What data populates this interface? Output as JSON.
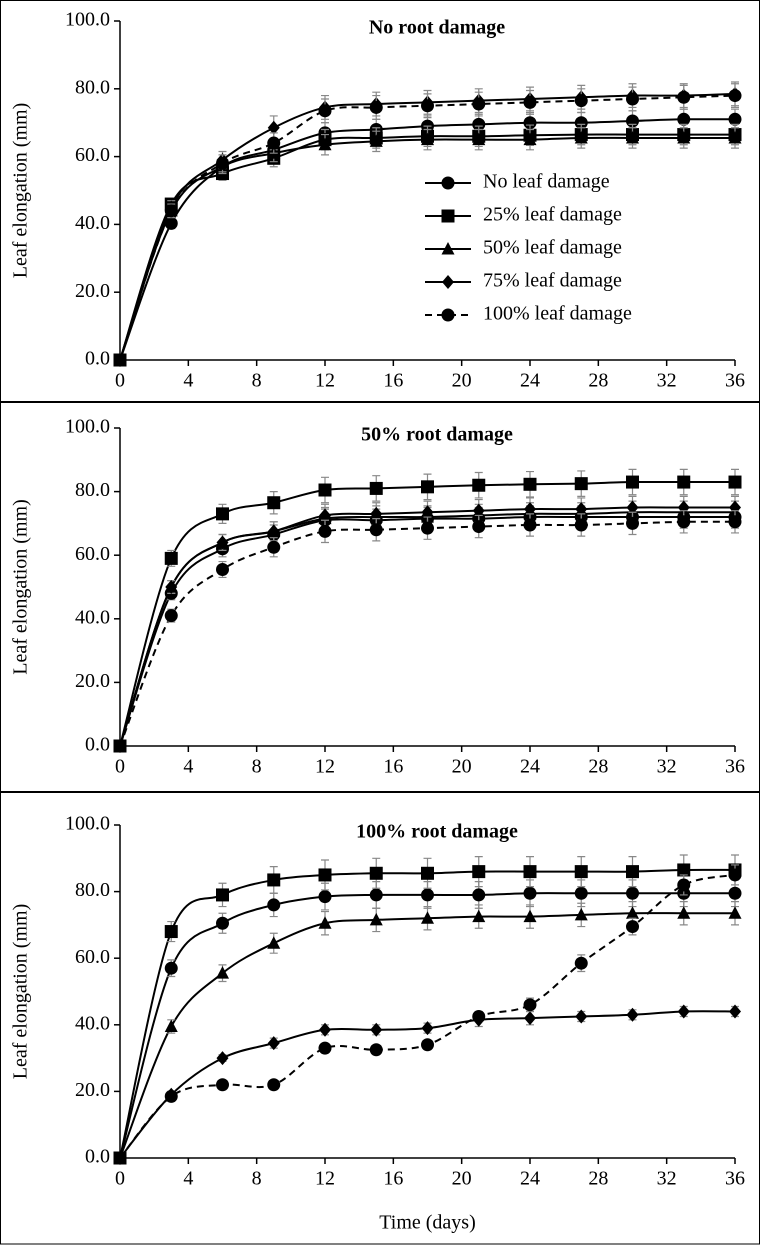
{
  "chart_data": [
    {
      "type": "line",
      "title": "No root damage",
      "y_label": "Leaf elongation (mm)",
      "x": [
        0,
        3,
        6,
        9,
        12,
        15,
        18,
        21,
        24,
        27,
        30,
        33,
        36
      ],
      "xlim": [
        0,
        36
      ],
      "xticks": [
        0,
        4,
        8,
        12,
        16,
        20,
        24,
        28,
        32,
        36
      ],
      "ylim": [
        0,
        100
      ],
      "yticks": [
        {
          "value": 0,
          "label": "0.0"
        },
        {
          "value": 20,
          "label": "20.0"
        },
        {
          "value": 40,
          "label": "40.0"
        },
        {
          "value": 60,
          "label": "60.0"
        },
        {
          "value": 80,
          "label": "80.0"
        },
        {
          "value": 100,
          "label": "100.0"
        }
      ],
      "legend": "right",
      "series": [
        {
          "name": "No leaf damage",
          "color": "#000000",
          "marker": "circle",
          "dashed": false,
          "values": [
            0,
            40.3,
            57,
            62,
            67,
            68,
            69,
            69.5,
            70,
            70,
            70.5,
            71,
            71
          ],
          "errors": [
            0,
            1.5,
            2,
            2.5,
            3,
            3,
            3,
            3,
            3,
            3,
            3,
            3,
            3
          ]
        },
        {
          "name": "25% leaf damage",
          "color": "#000000",
          "marker": "square",
          "dashed": false,
          "values": [
            0,
            46,
            55,
            59.5,
            65,
            65.5,
            66,
            66,
            66.3,
            66.5,
            66.5,
            66.5,
            66.5
          ],
          "errors": [
            0,
            1.5,
            2,
            2.5,
            3,
            3,
            3,
            3,
            3,
            3,
            3,
            3,
            3
          ]
        },
        {
          "name": "50% leaf damage",
          "color": "#000000",
          "marker": "triangle",
          "dashed": false,
          "values": [
            0,
            44,
            57,
            61,
            63.5,
            64.5,
            65,
            65,
            65,
            65.5,
            65.5,
            65.5,
            65.5
          ],
          "errors": [
            0,
            1.5,
            2,
            2.5,
            3,
            3,
            3,
            3,
            3,
            3,
            3,
            3,
            3
          ]
        },
        {
          "name": "75% leaf damage",
          "color": "#000000",
          "marker": "diamond",
          "dashed": false,
          "values": [
            0,
            45,
            59,
            68.5,
            74.5,
            75.5,
            76,
            76.5,
            77,
            77.5,
            78,
            78,
            78.5
          ],
          "errors": [
            0,
            2,
            2.5,
            3.5,
            3.5,
            3.5,
            3.5,
            3.5,
            3.5,
            3.5,
            3.5,
            3.5,
            3.5
          ]
        },
        {
          "name": "100% leaf damage",
          "color": "#000000",
          "marker": "circle",
          "dashed": true,
          "values": [
            0,
            44,
            58,
            64,
            73.5,
            74.5,
            75,
            75.5,
            76,
            76.5,
            77,
            77.5,
            78
          ],
          "errors": [
            0,
            2,
            2.5,
            3,
            3.5,
            3.5,
            3.5,
            3.5,
            3.5,
            3.5,
            3.5,
            3.5,
            3.5
          ]
        }
      ]
    },
    {
      "type": "line",
      "title": "50% root damage",
      "y_label": "Leaf elongation (mm)",
      "x": [
        0,
        3,
        6,
        9,
        12,
        15,
        18,
        21,
        24,
        27,
        30,
        33,
        36
      ],
      "xlim": [
        0,
        36
      ],
      "xticks": [
        0,
        4,
        8,
        12,
        16,
        20,
        24,
        28,
        32,
        36
      ],
      "ylim": [
        0,
        100
      ],
      "yticks": [
        {
          "value": 0,
          "label": "0.0"
        },
        {
          "value": 20,
          "label": "20.0"
        },
        {
          "value": 40,
          "label": "40.0"
        },
        {
          "value": 60,
          "label": "60.0"
        },
        {
          "value": 80,
          "label": "80.0"
        },
        {
          "value": 100,
          "label": "100.0"
        }
      ],
      "series": [
        {
          "name": "No leaf damage",
          "color": "#000000",
          "marker": "circle",
          "dashed": false,
          "values": [
            0,
            48,
            62,
            66.5,
            71,
            71,
            71.5,
            71.5,
            72,
            72,
            72,
            72,
            72
          ],
          "errors": [
            0,
            2,
            2.5,
            3,
            3.5,
            3.5,
            3.5,
            3.5,
            3.5,
            3.5,
            3.5,
            3.5,
            3.5
          ]
        },
        {
          "name": "25% leaf damage",
          "color": "#000000",
          "marker": "square",
          "dashed": false,
          "values": [
            0,
            59,
            73,
            76.5,
            80.5,
            81,
            81.5,
            82,
            82.3,
            82.5,
            83,
            83,
            83
          ],
          "errors": [
            0,
            2.5,
            3,
            3.5,
            4,
            4,
            4,
            4,
            4,
            4,
            4,
            4,
            4
          ]
        },
        {
          "name": "50% leaf damage",
          "color": "#000000",
          "marker": "triangle",
          "dashed": false,
          "values": [
            0,
            50,
            64,
            67.5,
            71.5,
            72,
            72,
            72.5,
            73,
            73,
            73.5,
            73.5,
            73.5
          ],
          "errors": [
            0,
            2,
            2.5,
            3,
            3.5,
            3.5,
            3.5,
            3.5,
            3.5,
            3.5,
            3.5,
            3.5,
            3.5
          ]
        },
        {
          "name": "75% leaf damage",
          "color": "#000000",
          "marker": "diamond",
          "dashed": false,
          "values": [
            0,
            50,
            64,
            67.5,
            72.5,
            73,
            73.5,
            74,
            74.5,
            74.5,
            75,
            75,
            75
          ],
          "errors": [
            0,
            2,
            2.5,
            3,
            3.5,
            3.5,
            3.5,
            3.5,
            3.5,
            3.5,
            3.5,
            3.5,
            3.5
          ]
        },
        {
          "name": "100% leaf damage",
          "color": "#000000",
          "marker": "circle",
          "dashed": true,
          "values": [
            0,
            41,
            55.5,
            62.5,
            67.5,
            68,
            68.5,
            69,
            69.5,
            69.5,
            70,
            70.5,
            70.5
          ],
          "errors": [
            0,
            2,
            2.5,
            3,
            3.5,
            3.5,
            3.5,
            3.5,
            3.5,
            3.5,
            3.5,
            3.5,
            3.5
          ]
        }
      ]
    },
    {
      "type": "line",
      "title": "100% root damage",
      "y_label": "Leaf elongation (mm)",
      "x_label": "Time (days)",
      "x": [
        0,
        3,
        6,
        9,
        12,
        15,
        18,
        21,
        24,
        27,
        30,
        33,
        36
      ],
      "xlim": [
        0,
        36
      ],
      "xticks": [
        0,
        4,
        8,
        12,
        16,
        20,
        24,
        28,
        32,
        36
      ],
      "ylim": [
        0,
        100
      ],
      "yticks": [
        {
          "value": 0,
          "label": "0.0"
        },
        {
          "value": 20,
          "label": "20.0"
        },
        {
          "value": 40,
          "label": "40.0"
        },
        {
          "value": 60,
          "label": "60.0"
        },
        {
          "value": 80,
          "label": "80.0"
        },
        {
          "value": 100,
          "label": "100.0"
        }
      ],
      "series": [
        {
          "name": "No leaf damage",
          "color": "#000000",
          "marker": "circle",
          "dashed": false,
          "values": [
            0,
            57,
            70.5,
            76,
            78.5,
            79,
            79,
            79,
            79.5,
            79.5,
            79.5,
            79.5,
            79.5
          ],
          "errors": [
            0,
            2.5,
            3,
            3.5,
            4,
            4,
            4,
            4,
            4,
            4,
            4,
            4,
            4
          ]
        },
        {
          "name": "25% leaf damage",
          "color": "#000000",
          "marker": "square",
          "dashed": false,
          "values": [
            0,
            68,
            79,
            83.5,
            85,
            85.5,
            85.5,
            86,
            86,
            86,
            86,
            86.5,
            86.5
          ],
          "errors": [
            0,
            3,
            3.5,
            4,
            4.5,
            4.5,
            4.5,
            4.5,
            4.5,
            4.5,
            4.5,
            4.5,
            4.5
          ]
        },
        {
          "name": "50% leaf damage",
          "color": "#000000",
          "marker": "triangle",
          "dashed": false,
          "values": [
            0,
            39.5,
            55.5,
            64.5,
            70.5,
            71.5,
            72,
            72.5,
            72.5,
            73,
            73.5,
            73.5,
            73.5
          ],
          "errors": [
            0,
            2,
            2.5,
            3,
            3.5,
            3.5,
            3.5,
            3.5,
            3.5,
            3.5,
            3.5,
            3.5,
            3.5
          ]
        },
        {
          "name": "75% leaf damage",
          "color": "#000000",
          "marker": "diamond",
          "dashed": false,
          "values": [
            0,
            19,
            30,
            34.5,
            38.5,
            38.5,
            39,
            41.5,
            42,
            42.5,
            43,
            44,
            44
          ],
          "errors": [
            0,
            1,
            1,
            1.5,
            1.5,
            1.5,
            1.5,
            2,
            2,
            1.5,
            1.5,
            1.5,
            1.5
          ]
        },
        {
          "name": "100% leaf damage",
          "color": "#000000",
          "marker": "circle",
          "dashed": true,
          "values": [
            0,
            18.5,
            22,
            22,
            33,
            32.5,
            34,
            42.5,
            46,
            58.5,
            69.5,
            82,
            85
          ],
          "errors": [
            0,
            1,
            1,
            1,
            1,
            1,
            1,
            1.5,
            2,
            2.5,
            2.5,
            3,
            3
          ]
        }
      ]
    }
  ]
}
